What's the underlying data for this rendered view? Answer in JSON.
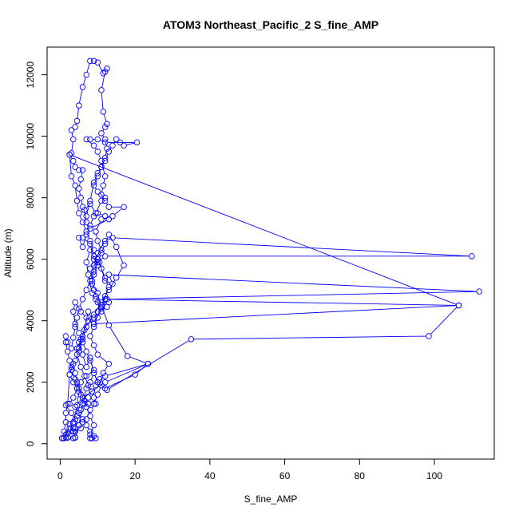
{
  "chart_data": {
    "type": "scatter",
    "title": "ATOM3 Northeast_Pacific_2 S_fine_AMP",
    "xlabel": "S_fine_AMP",
    "ylabel": "Altitude (m)",
    "xlim": [
      -3.5,
      116
    ],
    "ylim": [
      -500,
      12900
    ],
    "x_ticks": [
      0,
      20,
      40,
      60,
      80,
      100
    ],
    "y_ticks": [
      0,
      2000,
      4000,
      6000,
      8000,
      10000,
      12000
    ],
    "line_style": "points connected by lines",
    "color": "#0000ff",
    "grid": false,
    "series": [
      {
        "points": [
          [
            0.5,
            180
          ],
          [
            1.5,
            200
          ],
          [
            2.5,
            650
          ],
          [
            3.5,
            400
          ],
          [
            4,
            200
          ],
          [
            5,
            600
          ],
          [
            6,
            1300
          ],
          [
            7,
            1800
          ],
          [
            8,
            2000
          ],
          [
            9,
            2300
          ],
          [
            10,
            2000
          ],
          [
            12,
            1800
          ],
          [
            20,
            2250
          ],
          [
            23.5,
            2600
          ],
          [
            12,
            2200
          ],
          [
            10,
            2000
          ],
          [
            9,
            2300
          ],
          [
            8,
            2800
          ],
          [
            7,
            2500
          ],
          [
            6,
            2900
          ],
          [
            5,
            3300
          ],
          [
            4.5,
            3100
          ],
          [
            6,
            3500
          ],
          [
            7.5,
            4300
          ],
          [
            9,
            3900
          ],
          [
            11,
            4400
          ],
          [
            10,
            4900
          ],
          [
            8.5,
            5200
          ],
          [
            9,
            5500
          ],
          [
            10,
            5800
          ],
          [
            8,
            6300
          ],
          [
            7,
            5900
          ],
          [
            7.5,
            5500
          ],
          [
            8.5,
            4900
          ],
          [
            9.5,
            4700
          ],
          [
            11,
            4300
          ],
          [
            12.5,
            4700
          ],
          [
            112,
            4950
          ],
          [
            13,
            5500
          ],
          [
            14,
            5200
          ],
          [
            12,
            5300
          ],
          [
            10.5,
            5900
          ],
          [
            9,
            6100
          ],
          [
            8,
            6500
          ],
          [
            6,
            6700
          ],
          [
            5,
            6700
          ],
          [
            6,
            6400
          ],
          [
            7,
            6800
          ],
          [
            8,
            7100
          ],
          [
            9,
            7400
          ],
          [
            10,
            7500
          ],
          [
            12,
            7400
          ],
          [
            13,
            7300
          ],
          [
            8,
            7000
          ],
          [
            7,
            7200
          ],
          [
            6.5,
            7600
          ],
          [
            8,
            7800
          ],
          [
            9.5,
            7500
          ],
          [
            11,
            7900
          ],
          [
            12,
            8000
          ],
          [
            10,
            8200
          ],
          [
            9,
            8400
          ],
          [
            10,
            8700
          ],
          [
            11,
            9000
          ],
          [
            12,
            9300
          ],
          [
            12.5,
            9600
          ],
          [
            12,
            9900
          ],
          [
            11,
            10100
          ],
          [
            12,
            10300
          ],
          [
            12.5,
            10400
          ],
          [
            11.5,
            10800
          ],
          [
            11,
            11500
          ],
          [
            12,
            12100
          ],
          [
            12.5,
            12200
          ],
          [
            11.5,
            12050
          ],
          [
            10,
            12400
          ],
          [
            9,
            12450
          ],
          [
            8,
            12450
          ],
          [
            7,
            12000
          ],
          [
            6,
            11600
          ],
          [
            5,
            11000
          ],
          [
            4.5,
            10500
          ],
          [
            4,
            10300
          ],
          [
            3,
            10200
          ],
          [
            3.5,
            9900
          ],
          [
            3,
            9450
          ],
          [
            2.5,
            9400
          ],
          [
            3.5,
            9200
          ],
          [
            4,
            9000
          ],
          [
            5,
            8900
          ],
          [
            6,
            8900
          ],
          [
            5.5,
            8600
          ],
          [
            5,
            8300
          ],
          [
            5.5,
            8000
          ],
          [
            6,
            7700
          ],
          [
            7,
            7400
          ],
          [
            8,
            7900
          ],
          [
            9,
            8500
          ],
          [
            10,
            8800
          ],
          [
            11,
            9000
          ],
          [
            12,
            9200
          ],
          [
            13,
            9500
          ],
          [
            14,
            9700
          ],
          [
            15,
            9900
          ],
          [
            16,
            9800
          ],
          [
            17,
            9700
          ],
          [
            20.5,
            9800
          ],
          [
            12,
            9800
          ],
          [
            10,
            9900
          ],
          [
            8,
            9900
          ],
          [
            7,
            9900
          ],
          [
            9,
            9700
          ],
          [
            10,
            9500
          ],
          [
            11,
            9200
          ],
          [
            12,
            8700
          ],
          [
            11.5,
            8400
          ],
          [
            11,
            8100
          ],
          [
            12,
            7900
          ],
          [
            13,
            7700
          ],
          [
            17,
            7700
          ],
          [
            14,
            7400
          ],
          [
            11,
            7300
          ],
          [
            9.5,
            6900
          ],
          [
            10,
            6600
          ],
          [
            11,
            6300
          ],
          [
            9,
            6000
          ],
          [
            8,
            5700
          ],
          [
            12,
            6100
          ],
          [
            110,
            6100
          ],
          [
            14,
            6700
          ],
          [
            12,
            6600
          ],
          [
            10,
            6200
          ],
          [
            9,
            5800
          ],
          [
            8.5,
            5300
          ],
          [
            9,
            5000
          ],
          [
            9.5,
            4800
          ],
          [
            10,
            4600
          ],
          [
            13,
            4600
          ],
          [
            12.5,
            4450
          ],
          [
            10,
            4300
          ],
          [
            9,
            4100
          ],
          [
            7.5,
            4000
          ],
          [
            6.5,
            3700
          ],
          [
            5.5,
            3400
          ],
          [
            5,
            3100
          ],
          [
            4.5,
            2900
          ],
          [
            5.5,
            2500
          ],
          [
            6.5,
            2200
          ],
          [
            7.5,
            1900
          ],
          [
            8.5,
            1700
          ],
          [
            9,
            1500
          ],
          [
            9.5,
            1300
          ],
          [
            8,
            1100
          ],
          [
            7,
            800
          ],
          [
            6,
            700
          ],
          [
            5,
            600
          ],
          [
            4,
            500
          ],
          [
            3,
            400
          ],
          [
            2,
            350
          ],
          [
            1.5,
            300
          ],
          [
            2.5,
            500
          ],
          [
            3.5,
            700
          ],
          [
            4.5,
            900
          ],
          [
            5.5,
            1100
          ],
          [
            6.5,
            1300
          ],
          [
            7.5,
            1500
          ],
          [
            8.5,
            1700
          ],
          [
            9.5,
            1900
          ],
          [
            10.5,
            2100
          ],
          [
            11.5,
            2300
          ],
          [
            13,
            2600
          ],
          [
            10,
            2900
          ],
          [
            9,
            3200
          ],
          [
            8,
            3500
          ],
          [
            9,
            3800
          ],
          [
            10,
            4100
          ],
          [
            11,
            4400
          ],
          [
            12,
            4700
          ],
          [
            106.5,
            4500
          ],
          [
            2.5,
            9400
          ],
          [
            3,
            8700
          ],
          [
            4,
            8400
          ],
          [
            4.5,
            7900
          ],
          [
            5,
            7500
          ],
          [
            6,
            7200
          ],
          [
            7,
            6900
          ],
          [
            8,
            6600
          ],
          [
            9,
            6300
          ],
          [
            10,
            6000
          ],
          [
            11,
            5700
          ],
          [
            12,
            5400
          ],
          [
            13,
            5100
          ],
          [
            12,
            4800
          ],
          [
            11,
            4500
          ],
          [
            13,
            3850
          ],
          [
            18,
            2850
          ],
          [
            23.5,
            2600
          ],
          [
            12,
            2000
          ],
          [
            6,
            1500
          ],
          [
            4,
            1200
          ],
          [
            5,
            1000
          ],
          [
            6,
            800
          ],
          [
            7,
            600
          ],
          [
            8,
            400
          ],
          [
            9,
            250
          ],
          [
            9.5,
            180
          ],
          [
            8.5,
            180
          ],
          [
            8,
            180
          ],
          [
            8,
            300
          ],
          [
            9,
            600
          ],
          [
            8,
            900
          ],
          [
            7,
            1200
          ],
          [
            6,
            1500
          ],
          [
            5,
            1800
          ],
          [
            4,
            2100
          ],
          [
            3,
            2400
          ],
          [
            2.5,
            2700
          ],
          [
            2,
            3000
          ],
          [
            1.5,
            3300
          ],
          [
            1.5,
            3500
          ],
          [
            2,
            3300
          ],
          [
            3,
            3100
          ],
          [
            3.5,
            3450
          ],
          [
            4,
            3800
          ],
          [
            4.5,
            4100
          ],
          [
            5,
            4400
          ],
          [
            6,
            4700
          ],
          [
            7,
            5000
          ],
          [
            8,
            5300
          ],
          [
            9,
            5600
          ],
          [
            10,
            5900
          ],
          [
            11,
            6200
          ],
          [
            12,
            6500
          ],
          [
            13,
            6800
          ],
          [
            15,
            6400
          ],
          [
            17,
            5800
          ],
          [
            15,
            5400
          ],
          [
            13,
            5000
          ],
          [
            11,
            4600
          ],
          [
            9,
            4200
          ],
          [
            7,
            3800
          ],
          [
            6,
            3400
          ],
          [
            5,
            3000
          ],
          [
            4,
            2700
          ],
          [
            3,
            2500
          ],
          [
            2.5,
            2250
          ],
          [
            3.5,
            2000
          ],
          [
            4.5,
            1800
          ],
          [
            5.5,
            1600
          ],
          [
            6.5,
            1400
          ],
          [
            7.5,
            1300
          ],
          [
            9,
            1300
          ],
          [
            10,
            1600
          ],
          [
            11,
            1900
          ],
          [
            12.5,
            1750
          ],
          [
            35,
            3400
          ],
          [
            98.5,
            3500
          ],
          [
            106.5,
            4500
          ],
          [
            9,
            3900
          ],
          [
            7,
            4100
          ],
          [
            5.5,
            4300
          ],
          [
            4,
            4600
          ],
          [
            3.5,
            4300
          ],
          [
            4,
            3900
          ],
          [
            5,
            3600
          ],
          [
            6,
            3300
          ],
          [
            7,
            3000
          ],
          [
            8,
            2700
          ],
          [
            9,
            2400
          ],
          [
            7,
            2200
          ],
          [
            5.5,
            2000
          ],
          [
            4.5,
            1800
          ],
          [
            3.5,
            1500
          ],
          [
            2.5,
            1300
          ],
          [
            1.5,
            1250
          ],
          [
            3,
            1000
          ],
          [
            4,
            800
          ],
          [
            5,
            600
          ],
          [
            5.5,
            500
          ],
          [
            4,
            400
          ],
          [
            3.5,
            500
          ],
          [
            3.5,
            650
          ],
          [
            4.5,
            1250
          ],
          [
            5,
            1700
          ],
          [
            4.5,
            2000
          ],
          [
            4,
            2300
          ],
          [
            3.5,
            2600
          ],
          [
            2.5,
            2250
          ],
          [
            2,
            1300
          ],
          [
            1.5,
            1000
          ],
          [
            1.5,
            700
          ],
          [
            1,
            400
          ],
          [
            2,
            200
          ],
          [
            3.5,
            180
          ],
          [
            4,
            200
          ],
          [
            2,
            200
          ],
          [
            1,
            180
          ],
          [
            0.5,
            180
          ]
        ]
      }
    ]
  }
}
